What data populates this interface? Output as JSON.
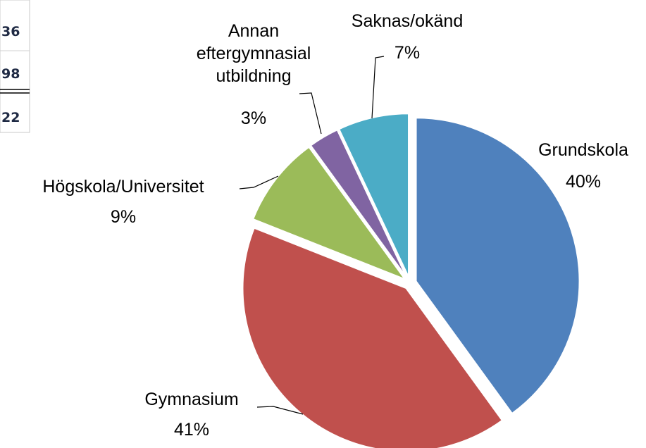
{
  "table_fragment": {
    "cells": [
      "36",
      "98",
      "22"
    ]
  },
  "chart_data": {
    "type": "pie",
    "categories": [
      "Grundskola",
      "Gymnasium",
      "Högskola/Universitet",
      "Annan eftergymnasial utbildning",
      "Saknas/okänd"
    ],
    "values": [
      40,
      41,
      9,
      3,
      7
    ],
    "value_labels": [
      "40%",
      "41%",
      "9%",
      "3%",
      "7%"
    ],
    "colors": [
      "#4f81bd",
      "#c0504d",
      "#9bbb59",
      "#8064a2",
      "#4bacc6"
    ]
  }
}
